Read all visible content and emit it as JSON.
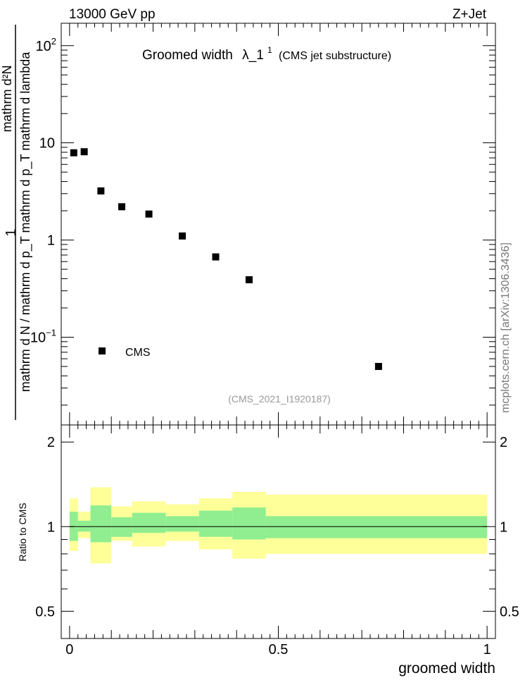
{
  "header": {
    "left": "13000 GeV pp",
    "right": "Z+Jet"
  },
  "plot": {
    "title_main": "Groomed width",
    "title_lambda": "λ_1",
    "title_sup": "1",
    "title_sub": "(CMS jet substructure)",
    "analysis_id": "(CMS_2021_I1920187)",
    "watermark": "mcplots.cern.ch [arXiv:1306.3436]",
    "ylabel_num": "mathrm d²N",
    "ylabel_den": "mathrm d N / mathrm d p_T mathrm d p_T mathrm d lambda",
    "ylabel_one": "1",
    "ratio_ylabel": "Ratio to CMS",
    "xlabel": "groomed width",
    "legend_label": "CMS"
  },
  "chart_data": [
    {
      "type": "scatter",
      "series": [
        {
          "name": "CMS",
          "color": "#000000",
          "x": [
            0.01,
            0.035,
            0.075,
            0.125,
            0.19,
            0.27,
            0.35,
            0.43,
            0.74
          ],
          "y": [
            7.9,
            8.1,
            3.2,
            2.2,
            1.85,
            1.1,
            0.67,
            0.39,
            0.05
          ]
        }
      ],
      "xlim": [
        -0.02,
        1.02
      ],
      "ylim": [
        0.0125,
        170
      ],
      "yscale": "log",
      "yticks": [
        {
          "value": 0.1,
          "base": "10",
          "exp": "−1"
        },
        {
          "value": 1,
          "base": "1",
          "exp": ""
        },
        {
          "value": 10,
          "base": "10",
          "exp": ""
        },
        {
          "value": 100,
          "base": "10",
          "exp": "2"
        }
      ]
    },
    {
      "type": "area",
      "ylim": [
        0.4,
        2.3
      ],
      "yticks": [
        "0.5",
        "1",
        "2"
      ],
      "xticks": [
        "0",
        "0.5",
        "1"
      ],
      "bin_edges": [
        0,
        0.02,
        0.05,
        0.1,
        0.15,
        0.23,
        0.31,
        0.39,
        0.47,
        1.0
      ],
      "band_inner": {
        "color": "#90ee90",
        "low": [
          0.89,
          0.96,
          0.88,
          0.92,
          0.95,
          0.96,
          0.92,
          0.9,
          0.91
        ],
        "high": [
          1.13,
          1.05,
          1.19,
          1.08,
          1.12,
          1.09,
          1.14,
          1.17,
          1.09
        ]
      },
      "band_outer": {
        "color": "#ffff99",
        "low": [
          0.82,
          0.91,
          0.74,
          0.89,
          0.85,
          0.89,
          0.83,
          0.77,
          0.8
        ],
        "high": [
          1.26,
          1.13,
          1.38,
          1.18,
          1.23,
          1.2,
          1.26,
          1.33,
          1.3
        ]
      },
      "reference": 1
    }
  ]
}
